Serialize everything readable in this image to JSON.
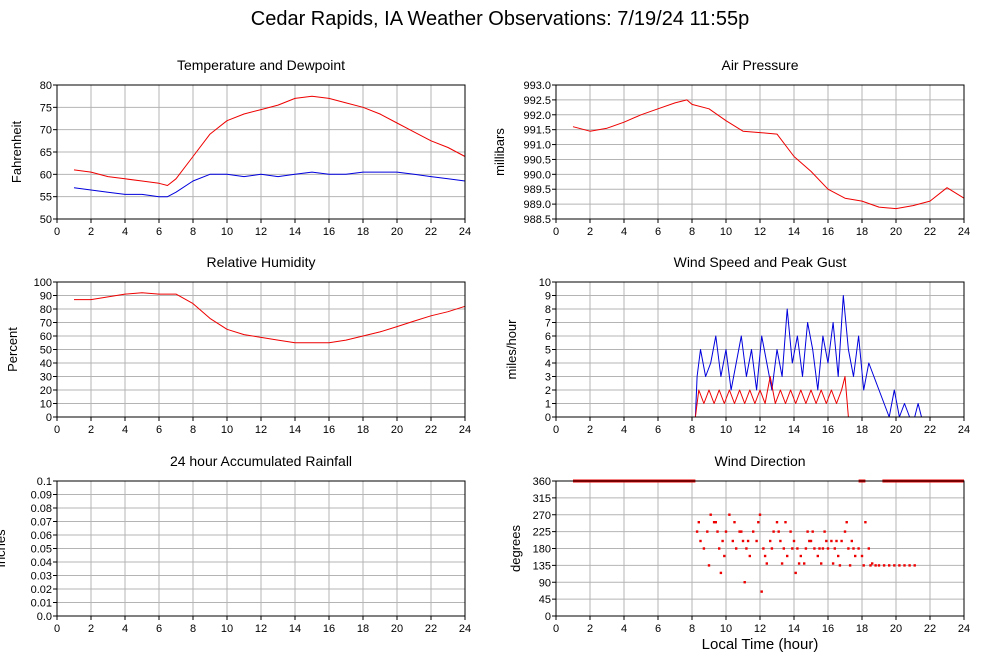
{
  "page": {
    "title": "Cedar Rapids, IA Weather Observations: 7/19/24 11:55p",
    "xlabel": "Local Time (hour)"
  },
  "colors": {
    "red": "#ee0000",
    "blue": "#0000dd",
    "grid": "#b4b4b4"
  },
  "chart_data": [
    {
      "id": "temp",
      "type": "line",
      "title": "Temperature and Dewpoint",
      "ylabel": "Fahrenheit",
      "xlim": [
        0,
        24
      ],
      "ylim": [
        50,
        80
      ],
      "xticks": [
        0,
        2,
        4,
        6,
        8,
        10,
        12,
        14,
        16,
        18,
        20,
        22,
        24
      ],
      "yticks": [
        50,
        55,
        60,
        65,
        70,
        75,
        80
      ],
      "ytick_labels": [
        "50",
        "55",
        "60",
        "65",
        "70",
        "75",
        "80"
      ],
      "grid": true,
      "series": [
        {
          "color": "red",
          "style": "line",
          "x": [
            1,
            2,
            3,
            4,
            5,
            6,
            6.5,
            7,
            8,
            9,
            10,
            11,
            12,
            13,
            14,
            15,
            16,
            17,
            18,
            19,
            20,
            21,
            22,
            23,
            24
          ],
          "y": [
            61,
            60.5,
            59.5,
            59,
            58.5,
            58,
            57.5,
            59,
            64,
            69,
            72,
            73.5,
            74.5,
            75.5,
            77,
            77.5,
            77,
            76,
            75,
            73.5,
            71.5,
            69.5,
            67.5,
            66,
            64
          ]
        },
        {
          "color": "blue",
          "style": "line",
          "x": [
            1,
            2,
            3,
            4,
            5,
            6,
            6.5,
            7,
            8,
            9,
            10,
            11,
            12,
            13,
            14,
            15,
            16,
            17,
            18,
            19,
            20,
            21,
            22,
            23,
            24
          ],
          "y": [
            57,
            56.5,
            56,
            55.5,
            55.5,
            55,
            55,
            56,
            58.5,
            60,
            60,
            59.5,
            60,
            59.5,
            60,
            60.5,
            60,
            60,
            60.5,
            60.5,
            60.5,
            60,
            59.5,
            59,
            58.5
          ]
        }
      ]
    },
    {
      "id": "pressure",
      "type": "line",
      "title": "Air Pressure",
      "ylabel": "millibars",
      "xlim": [
        0,
        24
      ],
      "ylim": [
        988.5,
        993.0
      ],
      "xticks": [
        0,
        2,
        4,
        6,
        8,
        10,
        12,
        14,
        16,
        18,
        20,
        22,
        24
      ],
      "yticks": [
        988.5,
        989.0,
        989.5,
        990.0,
        990.5,
        991.0,
        991.5,
        992.0,
        992.5,
        993.0
      ],
      "ytick_labels": [
        "988.5",
        "989.0",
        "989.5",
        "990.0",
        "990.5",
        "991.0",
        "991.5",
        "992.0",
        "992.5",
        "993.0"
      ],
      "grid": true,
      "series": [
        {
          "color": "red",
          "style": "line",
          "x": [
            1,
            2,
            3,
            4,
            5,
            6,
            7,
            7.7,
            8,
            9,
            10,
            11,
            12,
            13,
            14,
            15,
            16,
            17,
            18,
            19,
            20,
            21,
            22,
            23,
            24
          ],
          "y": [
            991.6,
            991.45,
            991.55,
            991.75,
            992.0,
            992.2,
            992.4,
            992.5,
            992.35,
            992.2,
            991.8,
            991.45,
            991.4,
            991.35,
            990.6,
            990.1,
            989.5,
            989.2,
            989.1,
            988.9,
            988.85,
            988.95,
            989.1,
            989.55,
            989.2
          ]
        }
      ]
    },
    {
      "id": "rh",
      "type": "line",
      "title": "Relative Humidity",
      "ylabel": "Percent",
      "xlim": [
        0,
        24
      ],
      "ylim": [
        0,
        100
      ],
      "xticks": [
        0,
        2,
        4,
        6,
        8,
        10,
        12,
        14,
        16,
        18,
        20,
        22,
        24
      ],
      "yticks": [
        0,
        10,
        20,
        30,
        40,
        50,
        60,
        70,
        80,
        90,
        100
      ],
      "ytick_labels": [
        "0",
        "10",
        "20",
        "30",
        "40",
        "50",
        "60",
        "70",
        "80",
        "90",
        "100"
      ],
      "grid": true,
      "series": [
        {
          "color": "red",
          "style": "line",
          "x": [
            1,
            2,
            3,
            4,
            5,
            6,
            7,
            8,
            9,
            10,
            11,
            12,
            13,
            14,
            15,
            16,
            17,
            18,
            19,
            20,
            21,
            22,
            23,
            24
          ],
          "y": [
            87,
            87,
            89,
            91,
            92,
            91,
            91,
            84,
            73,
            65,
            61,
            59,
            57,
            55,
            55,
            55,
            57,
            60,
            63,
            67,
            71,
            75,
            78,
            82
          ]
        }
      ]
    },
    {
      "id": "wind",
      "type": "line",
      "title": "Wind Speed and Peak Gust",
      "ylabel": "miles/hour",
      "xlim": [
        0,
        24
      ],
      "ylim": [
        0,
        10
      ],
      "xticks": [
        0,
        2,
        4,
        6,
        8,
        10,
        12,
        14,
        16,
        18,
        20,
        22,
        24
      ],
      "yticks": [
        0,
        1,
        2,
        3,
        4,
        5,
        6,
        7,
        8,
        9,
        10
      ],
      "ytick_labels": [
        "0",
        "1",
        "2",
        "3",
        "4",
        "5",
        "6",
        "7",
        "8",
        "9",
        "10"
      ],
      "grid": true,
      "series": [
        {
          "color": "blue",
          "style": "line",
          "x": [
            1,
            8.2,
            8.3,
            8.5,
            8.8,
            9.1,
            9.4,
            9.7,
            10,
            10.3,
            10.6,
            10.9,
            11.2,
            11.5,
            11.8,
            12.1,
            12.4,
            12.7,
            13,
            13.3,
            13.6,
            13.9,
            14.2,
            14.5,
            14.8,
            15.1,
            15.4,
            15.7,
            16,
            16.3,
            16.6,
            16.9,
            17.2,
            17.5,
            17.8,
            18.1,
            18.4,
            18.7,
            19,
            19.3,
            19.6,
            19.9,
            20.2,
            20.5,
            20.8,
            21.1,
            21.3,
            21.5,
            24
          ],
          "y": [
            0,
            0,
            3,
            5,
            3,
            4,
            6,
            3,
            5,
            2,
            4,
            6,
            3,
            5,
            2,
            6,
            4,
            2,
            5,
            3,
            8,
            4,
            6,
            3,
            7,
            5,
            2,
            6,
            4,
            7,
            3,
            9,
            5,
            3,
            6,
            2,
            4,
            3,
            2,
            1,
            0,
            2,
            0,
            1,
            0,
            0,
            1,
            0,
            0
          ]
        },
        {
          "color": "red",
          "style": "line",
          "x": [
            1,
            8.2,
            8.4,
            8.7,
            9.0,
            9.3,
            9.6,
            9.9,
            10.2,
            10.5,
            10.8,
            11.1,
            11.4,
            11.7,
            12.0,
            12.3,
            12.6,
            12.9,
            13.2,
            13.5,
            13.8,
            14.1,
            14.4,
            14.7,
            15.0,
            15.3,
            15.6,
            15.9,
            16.2,
            16.5,
            16.8,
            17.0,
            17.2,
            24
          ],
          "y": [
            0,
            0,
            2,
            1,
            2,
            1,
            2,
            1,
            2,
            1,
            2,
            1,
            2,
            1,
            2,
            1,
            3,
            1,
            2,
            1,
            2,
            1,
            2,
            1,
            2,
            1,
            2,
            1,
            2,
            1,
            2,
            3,
            0,
            0
          ]
        }
      ]
    },
    {
      "id": "rain",
      "type": "line",
      "title": "24 hour Accumulated Rainfall",
      "ylabel": "Inches",
      "xlim": [
        0,
        24
      ],
      "ylim": [
        0,
        0.1
      ],
      "xticks": [
        0,
        2,
        4,
        6,
        8,
        10,
        12,
        14,
        16,
        18,
        20,
        22,
        24
      ],
      "yticks": [
        0,
        0.01,
        0.02,
        0.03,
        0.04,
        0.05,
        0.06,
        0.07,
        0.08,
        0.09,
        0.1
      ],
      "ytick_labels": [
        "0.0",
        "0.01",
        "0.02",
        "0.03",
        "0.04",
        "0.05",
        "0.06",
        "0.07",
        "0.08",
        "0.09",
        "0.1"
      ],
      "grid": true,
      "series": [
        {
          "color": "red",
          "style": "line",
          "x": [
            1,
            24
          ],
          "y": [
            0,
            0
          ]
        }
      ]
    },
    {
      "id": "dir",
      "type": "scatter",
      "title": "Wind Direction",
      "ylabel": "degrees",
      "xlim": [
        0,
        24
      ],
      "ylim": [
        0,
        360
      ],
      "xticks": [
        0,
        2,
        4,
        6,
        8,
        10,
        12,
        14,
        16,
        18,
        20,
        22,
        24
      ],
      "yticks": [
        0,
        45,
        90,
        135,
        180,
        225,
        270,
        315,
        360
      ],
      "ytick_labels": [
        "0",
        "45",
        "90",
        "135",
        "180",
        "225",
        "270",
        "315",
        "360"
      ],
      "grid": true,
      "series": [
        {
          "color": "red",
          "style": "band",
          "x": [
            1,
            8.2
          ],
          "y": [
            360,
            360
          ]
        },
        {
          "color": "red",
          "style": "band",
          "x": [
            17.8,
            18.2
          ],
          "y": [
            360,
            360
          ]
        },
        {
          "color": "red",
          "style": "band",
          "x": [
            19.2,
            24
          ],
          "y": [
            360,
            360
          ]
        },
        {
          "color": "red",
          "style": "points",
          "x": [
            8.3,
            8.5,
            8.7,
            8.9,
            9.1,
            9.3,
            9.5,
            9.6,
            9.8,
            10.0,
            10.2,
            10.4,
            10.6,
            10.8,
            11.0,
            11.2,
            11.4,
            11.6,
            11.8,
            12.0,
            12.2,
            12.4,
            12.6,
            12.8,
            13.0,
            13.2,
            13.4,
            13.6,
            13.8,
            14.0,
            14.2,
            14.4,
            14.6,
            14.8,
            15.0,
            15.2,
            15.4,
            15.6,
            15.8,
            16.0,
            16.2,
            16.4,
            16.6,
            16.8,
            17.0,
            17.2,
            17.4,
            17.6,
            17.8,
            18.0,
            18.2,
            18.4,
            18.6,
            18.8,
            19.0,
            19.3,
            19.6,
            19.9,
            20.2,
            20.5,
            20.8,
            21.1,
            8.4,
            9.0,
            9.4,
            9.9,
            10.5,
            10.9,
            11.3,
            11.9,
            12.3,
            12.7,
            13.1,
            13.5,
            13.9,
            14.3,
            14.7,
            15.1,
            15.5,
            15.9,
            16.3,
            16.7,
            17.1,
            17.5,
            18.1,
            18.5,
            9.7,
            11.1,
            12.1,
            13.3,
            14.1,
            14.9,
            15.7,
            16.5,
            17.3
          ],
          "y": [
            225,
            200,
            180,
            225,
            270,
            250,
            225,
            180,
            200,
            225,
            270,
            200,
            180,
            225,
            200,
            180,
            160,
            225,
            200,
            270,
            180,
            140,
            200,
            225,
            250,
            200,
            180,
            160,
            225,
            200,
            180,
            160,
            140,
            225,
            200,
            180,
            160,
            140,
            225,
            180,
            200,
            180,
            160,
            200,
            225,
            180,
            200,
            160,
            180,
            160,
            250,
            180,
            140,
            135,
            135,
            135,
            135,
            135,
            135,
            135,
            135,
            135,
            250,
            135,
            250,
            160,
            250,
            225,
            200,
            250,
            160,
            180,
            225,
            250,
            180,
            140,
            180,
            225,
            180,
            200,
            140,
            135,
            250,
            180,
            135,
            135,
            115,
            90,
            65,
            140,
            115,
            200,
            180,
            200,
            135
          ]
        }
      ]
    }
  ]
}
